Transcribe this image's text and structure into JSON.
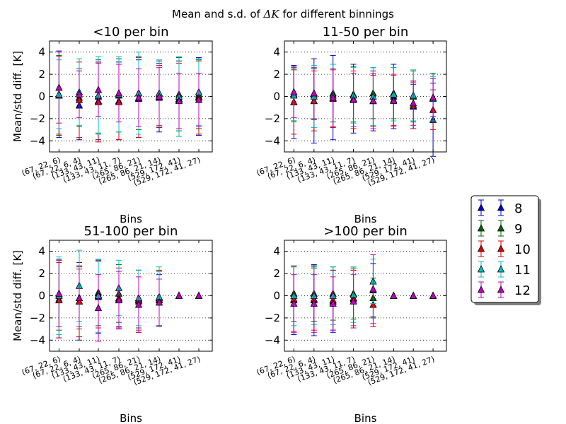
{
  "figure": {
    "title_prefix": "Mean and s.d. of ",
    "title_symbol": "ΔK",
    "title_suffix": " for different binnings"
  },
  "colors": {
    "8": "#0000cc",
    "9": "#006400",
    "10": "#dd0000",
    "11": "#00bfbf",
    "12": "#bf00bf"
  },
  "legend": [
    "8",
    "9",
    "10",
    "11",
    "12"
  ],
  "chart_data": [
    {
      "type": "scatter",
      "error_bars": true,
      "title": "<10 per bin",
      "xlabel": "Bins",
      "ylabel": "Mean/std diff. [K]",
      "ylim": [
        -5,
        5
      ],
      "yticks": [
        "4",
        "2",
        "0",
        "−2",
        "−4"
      ],
      "ytick_values": [
        4,
        2,
        0,
        -2,
        -4
      ],
      "grid": "horizontal dotted",
      "categories": [
        "(67, 22, 6)",
        "(67, 22, 6, 4)",
        "(133, 43, 11)",
        "(133, 43, 11, 7)",
        "(265, 86, 21)",
        "(265, 86, 21, 14)",
        "(529, 172, 41)",
        "(529, 172, 41, 27)"
      ],
      "series": [
        {
          "name": "8",
          "mean": [
            0.2,
            -0.8,
            -0.4,
            -0.4,
            -0.2,
            -0.1,
            -0.2,
            0.0
          ],
          "sd": [
            3.9,
            3.1,
            3.5,
            3.5,
            3.5,
            3.1,
            3.4,
            3.5
          ]
        },
        {
          "name": "9",
          "mean": [
            0.1,
            -0.1,
            0.0,
            0.1,
            0.3,
            0.2,
            0.2,
            0.2
          ],
          "sd": [
            3.6,
            2.6,
            3.3,
            3.3,
            3.3,
            3.0,
            3.3,
            3.1
          ]
        },
        {
          "name": "10",
          "mean": [
            0.1,
            -0.3,
            -0.5,
            -0.5,
            -0.1,
            0.0,
            -0.3,
            -0.1
          ],
          "sd": [
            3.5,
            3.4,
            3.6,
            3.4,
            3.6,
            2.8,
            3.3,
            3.3
          ]
        },
        {
          "name": "11",
          "mean": [
            0.2,
            0.4,
            0.1,
            0.2,
            0.3,
            0.3,
            0.0,
            0.4
          ],
          "sd": [
            3.1,
            3.0,
            3.5,
            3.4,
            3.7,
            3.0,
            3.6,
            3.0
          ]
        },
        {
          "name": "12",
          "mean": [
            0.8,
            0.2,
            0.6,
            0.3,
            -0.1,
            0.0,
            -0.4,
            -0.3
          ],
          "sd": [
            3.2,
            2.1,
            2.4,
            2.6,
            2.6,
            2.6,
            2.5,
            2.4
          ]
        }
      ]
    },
    {
      "type": "scatter",
      "error_bars": true,
      "title": "11-50 per bin",
      "xlabel": "Bins",
      "ylabel": "",
      "ylim": [
        -5,
        5
      ],
      "yticks": [
        "4",
        "2",
        "0",
        "−2",
        "−4"
      ],
      "ytick_values": [
        4,
        2,
        0,
        -2,
        -4
      ],
      "grid": "horizontal dotted",
      "categories": [
        "(67, 22, 6)",
        "(67, 22, 6, 4)",
        "(133, 43, 11)",
        "(133, 43, 11, 7)",
        "(265, 86, 21)",
        "(265, 86, 21, 14)",
        "(529, 172, 41)",
        "(529, 172, 41, 27)"
      ],
      "series": [
        {
          "name": "8",
          "mean": [
            -0.5,
            -0.4,
            -0.1,
            -0.2,
            -0.4,
            0.0,
            -0.9,
            -2.1
          ],
          "sd": [
            3.3,
            3.8,
            3.8,
            3.1,
            2.7,
            2.9,
            2.0,
            3.3
          ]
        },
        {
          "name": "9",
          "mean": [
            0.2,
            0.2,
            0.3,
            0.2,
            0.3,
            0.3,
            0.0,
            -0.1
          ],
          "sd": [
            2.4,
            2.3,
            2.6,
            2.5,
            2.3,
            2.3,
            2.3,
            2.2
          ]
        },
        {
          "name": "10",
          "mean": [
            -0.5,
            -0.4,
            -0.2,
            -0.3,
            -0.4,
            -0.3,
            -0.8,
            -1.2
          ],
          "sd": [
            2.9,
            2.7,
            2.6,
            2.6,
            2.3,
            2.3,
            2.1,
            1.8
          ]
        },
        {
          "name": "11",
          "mean": [
            0.1,
            0.0,
            0.1,
            0.1,
            0.0,
            0.2,
            0.1,
            -0.2
          ],
          "sd": [
            2.4,
            2.8,
            2.8,
            2.5,
            2.6,
            2.4,
            2.3,
            2.0
          ]
        },
        {
          "name": "12",
          "mean": [
            0.4,
            0.3,
            -0.1,
            -0.3,
            -0.4,
            -0.4,
            -0.6,
            -0.1
          ],
          "sd": [
            2.3,
            2.3,
            2.6,
            2.4,
            2.5,
            2.3,
            2.0,
            1.7
          ]
        }
      ]
    },
    {
      "type": "scatter",
      "error_bars": true,
      "title": "51-100 per bin",
      "xlabel": "Bins",
      "ylabel": "Mean/std diff. [K]",
      "ylim": [
        -5,
        5
      ],
      "yticks": [
        "4",
        "2",
        "0",
        "−2",
        "−4"
      ],
      "ytick_values": [
        4,
        2,
        0,
        -2,
        -4
      ],
      "grid": "horizontal dotted",
      "categories": [
        "(67, 22, 6)",
        "(67, 22, 6, 4)",
        "(133, 43, 11)",
        "(133, 43, 11, 7)",
        "(265, 86, 21)",
        "(265, 86, 21, 14)",
        "(529, 172, 41)",
        "(529, 172, 41, 27)"
      ],
      "series": [
        {
          "name": "8",
          "mean": [
            -0.3,
            -0.5,
            -0.1,
            -0.3,
            -0.5,
            -0.4,
            0.0,
            0.0
          ],
          "sd": [
            3.5,
            3.5,
            3.3,
            2.5,
            2.8,
            2.3,
            0.0,
            0.0
          ]
        },
        {
          "name": "9",
          "mean": [
            0.1,
            -0.2,
            0.3,
            0.2,
            -0.3,
            -0.2,
            0.0,
            0.0
          ],
          "sd": [
            3.2,
            2.8,
            3.0,
            2.6,
            2.6,
            2.5,
            0.0,
            0.0
          ]
        },
        {
          "name": "10",
          "mean": [
            -0.4,
            -0.5,
            0.1,
            -0.2,
            -0.4,
            -0.3,
            0.0,
            0.0
          ],
          "sd": [
            3.4,
            3.2,
            3.0,
            2.7,
            2.7,
            2.5,
            0.0,
            0.0
          ]
        },
        {
          "name": "11",
          "mean": [
            0.0,
            0.9,
            0.0,
            0.7,
            -0.2,
            -0.1,
            0.0,
            0.0
          ],
          "sd": [
            3.5,
            3.2,
            3.3,
            2.5,
            2.5,
            2.7,
            0.0,
            0.0
          ]
        },
        {
          "name": "12",
          "mean": [
            0.2,
            -0.2,
            -1.1,
            -0.4,
            -0.8,
            -0.6,
            0.0,
            0.0
          ],
          "sd": [
            3.0,
            2.6,
            3.0,
            2.6,
            2.5,
            2.1,
            0.0,
            0.0
          ]
        }
      ]
    },
    {
      "type": "scatter",
      "error_bars": true,
      "title": ">100 per bin",
      "xlabel": "Bins",
      "ylabel": "",
      "ylim": [
        -5,
        5
      ],
      "yticks": [
        "4",
        "2",
        "0",
        "−2",
        "−4"
      ],
      "ytick_values": [
        4,
        2,
        0,
        -2,
        -4
      ],
      "grid": "horizontal dotted",
      "categories": [
        "(67, 22, 6)",
        "(67, 22, 6, 4)",
        "(133, 43, 11)",
        "(133, 43, 11, 7)",
        "(265, 86, 21)",
        "(265, 86, 21, 14)",
        "(529, 172, 41)",
        "(529, 172, 41, 27)"
      ],
      "series": [
        {
          "name": "8",
          "mean": [
            -0.4,
            -0.4,
            -0.5,
            -0.3,
            0.5,
            0.0,
            0.0,
            0.0
          ],
          "sd": [
            3.1,
            3.2,
            2.8,
            2.6,
            2.4,
            0.0,
            0.0,
            0.0
          ]
        },
        {
          "name": "9",
          "mean": [
            0.2,
            0.2,
            0.2,
            0.2,
            -0.2,
            0.0,
            0.0,
            0.0
          ],
          "sd": [
            2.5,
            2.5,
            2.4,
            2.3,
            1.8,
            0.0,
            0.0,
            0.0
          ]
        },
        {
          "name": "10",
          "mean": [
            -0.3,
            -0.3,
            -0.4,
            -0.2,
            -0.8,
            0.0,
            0.0,
            0.0
          ],
          "sd": [
            2.9,
            2.8,
            2.7,
            2.5,
            2.0,
            0.0,
            0.0,
            0.0
          ]
        },
        {
          "name": "11",
          "mean": [
            0.0,
            0.0,
            0.0,
            0.1,
            1.3,
            0.0,
            0.0,
            0.0
          ],
          "sd": [
            2.7,
            2.6,
            2.6,
            2.5,
            2.0,
            0.0,
            0.0,
            0.0
          ]
        },
        {
          "name": "12",
          "mean": [
            -0.7,
            -0.7,
            -0.7,
            -0.5,
            0.6,
            0.0,
            0.0,
            0.0
          ],
          "sd": [
            2.6,
            2.6,
            2.4,
            2.4,
            3.1,
            0.0,
            0.0,
            0.0
          ]
        }
      ]
    }
  ]
}
